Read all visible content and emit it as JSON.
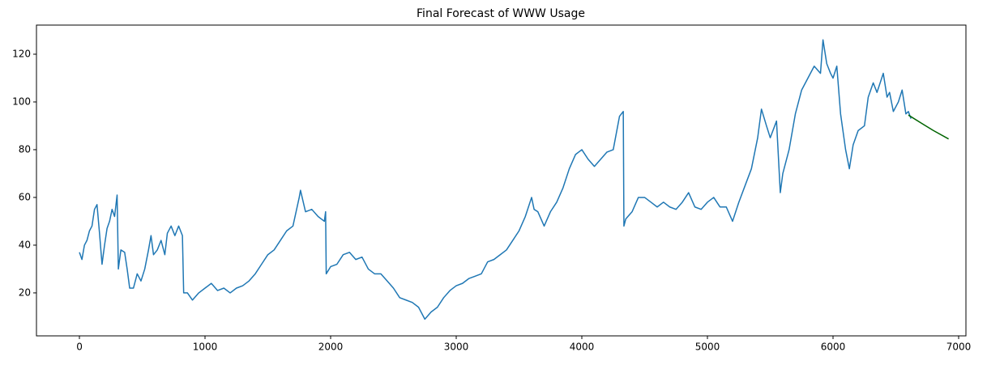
{
  "chart_data": {
    "type": "line",
    "title": "Final Forecast of WWW Usage",
    "xlim": [
      -342,
      7058
    ],
    "ylim": [
      2,
      132.2
    ],
    "xticks": [
      0,
      1000,
      2000,
      3000,
      4000,
      5000,
      6000,
      7000
    ],
    "yticks": [
      20,
      40,
      60,
      80,
      100,
      120
    ],
    "grid": false,
    "series": [
      {
        "color": "#1f77b4",
        "x": [
          0,
          20,
          40,
          60,
          80,
          100,
          120,
          140,
          160,
          180,
          200,
          220,
          240,
          260,
          280,
          300,
          310,
          330,
          360,
          380,
          400,
          430,
          460,
          490,
          520,
          550,
          570,
          590,
          620,
          650,
          680,
          700,
          730,
          760,
          790,
          820,
          830,
          860,
          900,
          950,
          1000,
          1050,
          1100,
          1150,
          1200,
          1250,
          1300,
          1350,
          1400,
          1450,
          1500,
          1550,
          1600,
          1650,
          1700,
          1750,
          1760,
          1800,
          1850,
          1900,
          1950,
          1960,
          1965,
          2000,
          2050,
          2100,
          2150,
          2200,
          2250,
          2300,
          2350,
          2400,
          2450,
          2500,
          2550,
          2600,
          2650,
          2700,
          2750,
          2800,
          2850,
          2900,
          2950,
          3000,
          3050,
          3100,
          3150,
          3200,
          3250,
          3300,
          3350,
          3400,
          3450,
          3500,
          3550,
          3600,
          3620,
          3650,
          3700,
          3750,
          3800,
          3850,
          3900,
          3950,
          4000,
          4050,
          4100,
          4150,
          4200,
          4250,
          4300,
          4330,
          4335,
          4350,
          4400,
          4450,
          4500,
          4550,
          4600,
          4650,
          4700,
          4750,
          4800,
          4850,
          4900,
          4950,
          5000,
          5050,
          5100,
          5150,
          5200,
          5250,
          5300,
          5350,
          5400,
          5430,
          5470,
          5500,
          5550,
          5580,
          5600,
          5650,
          5700,
          5750,
          5800,
          5850,
          5900,
          5920,
          5950,
          5980,
          6000,
          6030,
          6060,
          6100,
          6130,
          6160,
          6200,
          6250,
          6280,
          6320,
          6350,
          6400,
          6430,
          6450,
          6480,
          6520,
          6550,
          6580,
          6600,
          6620
        ],
        "values": [
          37,
          34,
          40,
          42,
          46,
          48,
          55,
          57,
          45,
          32,
          40,
          47,
          50,
          55,
          52,
          61,
          30,
          38,
          37,
          30,
          22,
          22,
          28,
          25,
          30,
          38,
          44,
          36,
          38,
          42,
          36,
          45,
          48,
          44,
          48,
          44,
          20,
          20,
          17,
          20,
          22,
          24,
          21,
          22,
          20,
          22,
          23,
          25,
          28,
          32,
          36,
          38,
          42,
          46,
          48,
          60,
          63,
          54,
          55,
          52,
          50,
          54,
          28,
          31,
          32,
          36,
          37,
          34,
          35,
          30,
          28,
          28,
          25,
          22,
          18,
          17,
          16,
          14,
          9,
          12,
          14,
          18,
          21,
          23,
          24,
          26,
          27,
          28,
          33,
          34,
          36,
          38,
          42,
          46,
          52,
          60,
          55,
          54,
          48,
          54,
          58,
          64,
          72,
          78,
          80,
          76,
          73,
          76,
          79,
          80,
          94,
          96,
          48,
          51,
          54,
          60,
          60,
          58,
          56,
          58,
          56,
          55,
          58,
          62,
          56,
          55,
          58,
          60,
          56,
          56,
          50,
          58,
          65,
          72,
          85,
          97,
          90,
          85,
          92,
          62,
          70,
          80,
          95,
          105,
          110,
          115,
          112,
          126,
          116,
          112,
          110,
          115,
          95,
          80,
          72,
          82,
          88,
          90,
          102,
          108,
          104,
          112,
          102,
          104,
          96,
          100,
          105,
          95,
          96,
          93
        ]
      },
      {
        "color": "#006400",
        "x": [
          6600,
          6700,
          6800,
          6920
        ],
        "values": [
          94.5,
          91.2,
          88,
          84.5
        ]
      }
    ]
  }
}
